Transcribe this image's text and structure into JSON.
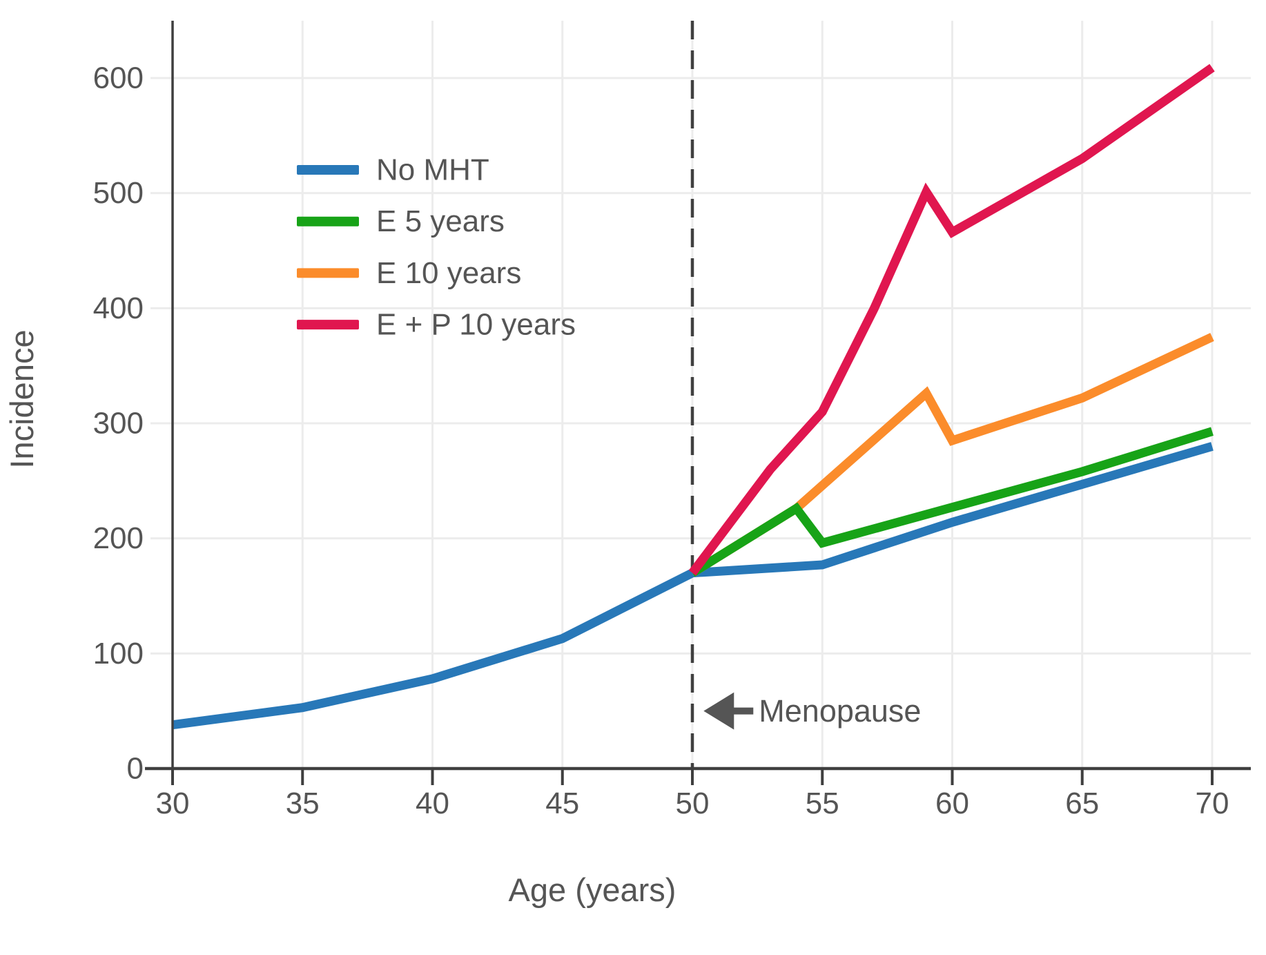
{
  "chart_data": {
    "type": "line",
    "title": "",
    "xlabel": "Age (years)",
    "ylabel": "Incidence",
    "x_ticks": [
      30,
      35,
      40,
      45,
      50,
      55,
      60,
      65,
      70
    ],
    "y_ticks": [
      0,
      100,
      200,
      300,
      400,
      500,
      600
    ],
    "xlim": [
      30,
      70
    ],
    "ylim": [
      0,
      650
    ],
    "grid": true,
    "legend_position": "upper-left-inside",
    "colors": {
      "background": "#ffffff",
      "text": "#555555",
      "axis": "#3f3f3f",
      "grid": "#ececec",
      "dashed_line": "#404040",
      "arrow": "#555555"
    },
    "series": [
      {
        "name": "No MHT",
        "color": "#2878B8",
        "x": [
          30,
          35,
          40,
          45,
          50,
          55,
          60,
          65,
          70
        ],
        "y": [
          38,
          53,
          78,
          113,
          170,
          177,
          214,
          247,
          280
        ]
      },
      {
        "name": "E 5 years",
        "color": "#17A317",
        "x": [
          50,
          54,
          55,
          60,
          65,
          70
        ],
        "y": [
          170,
          226,
          196,
          227,
          258,
          293
        ]
      },
      {
        "name": "E 10 years",
        "color": "#FB8C2B",
        "x": [
          50,
          54,
          55,
          59,
          60,
          65,
          70
        ],
        "y": [
          170,
          226,
          246,
          326,
          285,
          322,
          375
        ]
      },
      {
        "name": "E + P 10 years",
        "color": "#E0164F",
        "x": [
          50,
          53,
          55,
          57,
          59,
          60,
          65,
          70
        ],
        "y": [
          170,
          260,
          310,
          400,
          501,
          466,
          530,
          609
        ]
      }
    ],
    "reference_line": {
      "x": 50,
      "style": "dashed",
      "orientation": "vertical"
    },
    "annotation": {
      "text": "Menopause",
      "arrow_direction": "left",
      "x": 50.3,
      "y": 50
    }
  }
}
